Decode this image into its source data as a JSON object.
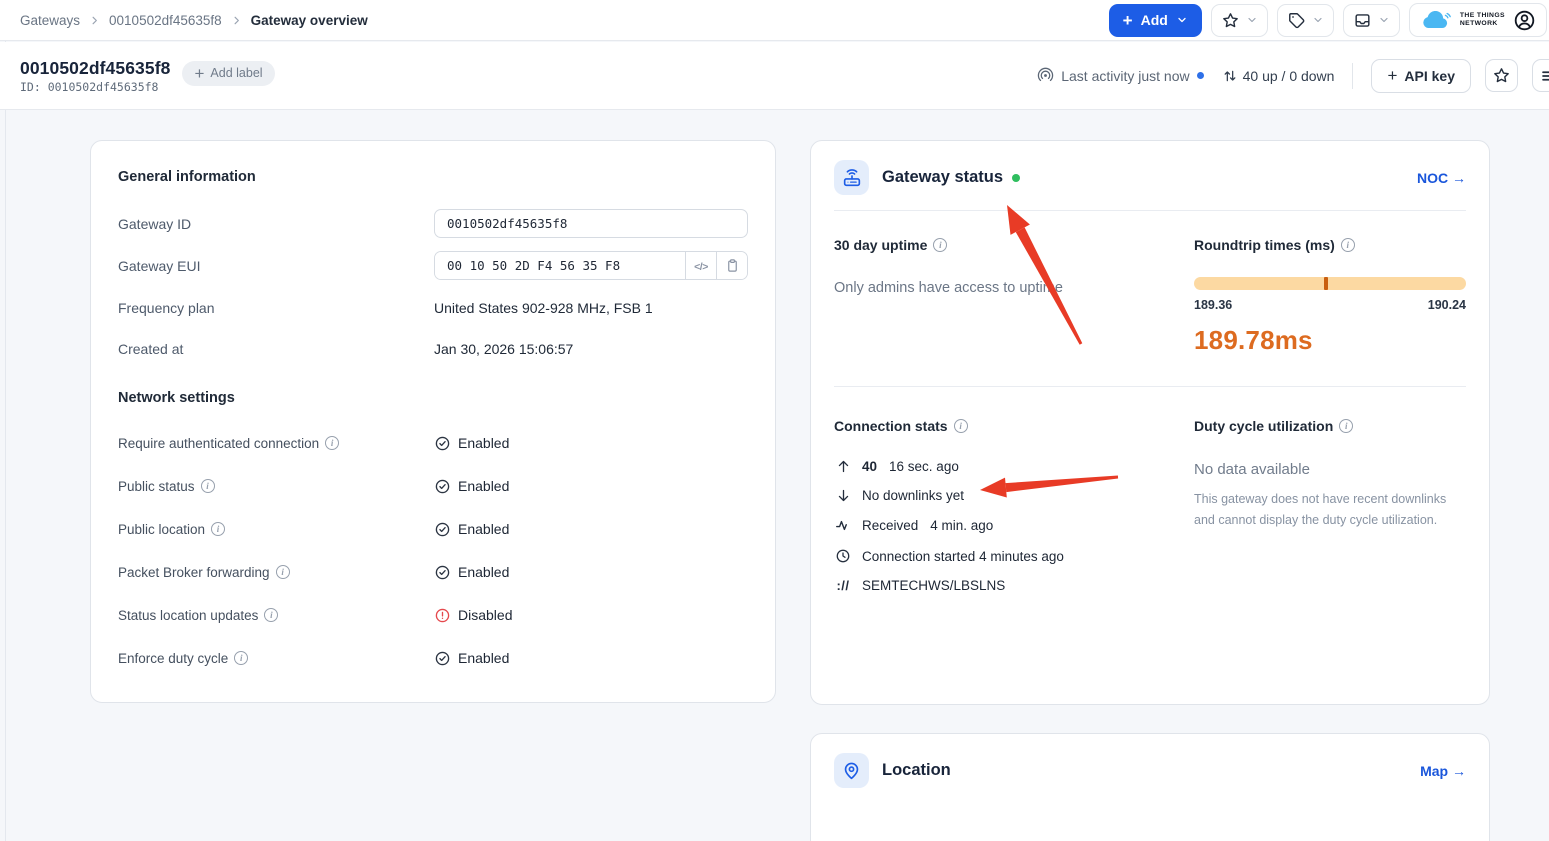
{
  "colors": {
    "accent_blue": "#1d5de6",
    "link_blue": "#1a56db",
    "status_green": "#2fbe5f",
    "live_dot_blue": "#2e70e8",
    "orange_text": "#dd6b20",
    "orange_bar": "#fcd9a2",
    "orange_marker": "#c95f10",
    "disabled_red": "#e5484d",
    "annotation_red": "#e83b26"
  },
  "topbar": {
    "breadcrumb": [
      {
        "label": "Gateways"
      },
      {
        "label": "0010502df45635f8"
      },
      {
        "label": "Gateway overview"
      }
    ],
    "add_button_label": "Add"
  },
  "brand": {
    "line1": "THE THINGS",
    "line2": "NETWORK"
  },
  "header": {
    "title": "0010502df45635f8",
    "id_line": "ID: 0010502df45635f8",
    "add_label_button": "Add label",
    "last_activity_text": "Last activity just now",
    "traffic_text": "40 up / 0 down",
    "api_key_button_label": "API key"
  },
  "general_card": {
    "title": "General information",
    "gateway_id_label": "Gateway ID",
    "gateway_id_value": "0010502df45635f8",
    "gateway_eui_label": "Gateway EUI",
    "gateway_eui_value": "00 10 50 2D F4 56 35 F8",
    "frequency_plan_label": "Frequency plan",
    "frequency_plan_value": "United States 902-928 MHz, FSB 1",
    "created_at_label": "Created at",
    "created_at_value": "Jan 30, 2026 15:06:57",
    "network_settings_title": "Network settings",
    "network_rows": [
      {
        "label": "Require authenticated connection",
        "status": "Enabled"
      },
      {
        "label": "Public status",
        "status": "Enabled"
      },
      {
        "label": "Public location",
        "status": "Enabled"
      },
      {
        "label": "Packet Broker forwarding",
        "status": "Enabled"
      },
      {
        "label": "Status location updates",
        "status": "Disabled"
      },
      {
        "label": "Enforce duty cycle",
        "status": "Enabled"
      }
    ]
  },
  "status_card": {
    "title": "Gateway status",
    "noc_link": "NOC →",
    "uptime_title": "30 day uptime",
    "uptime_message": "Only admins have access to uptime",
    "roundtrip_title": "Roundtrip times (ms)",
    "roundtrip_min": "189.36",
    "roundtrip_max": "190.24",
    "roundtrip_current": "189.78ms",
    "roundtrip_marker_pct": 47.7,
    "connection_title": "Connection stats",
    "uplink_count": "40",
    "uplink_time": "16 sec. ago",
    "downlink_text": "No downlinks yet",
    "received_label": "Received",
    "received_time": "4 min. ago",
    "connection_started_text": "Connection started 4 minutes ago",
    "protocol_text": "SEMTECHWS/LBSLNS",
    "duty_title": "Duty cycle utilization",
    "duty_no_data": "No data available",
    "duty_message": "This gateway does not have recent downlinks and cannot display the duty cycle utilization."
  },
  "location_card": {
    "title": "Location",
    "map_link": "Map →"
  }
}
